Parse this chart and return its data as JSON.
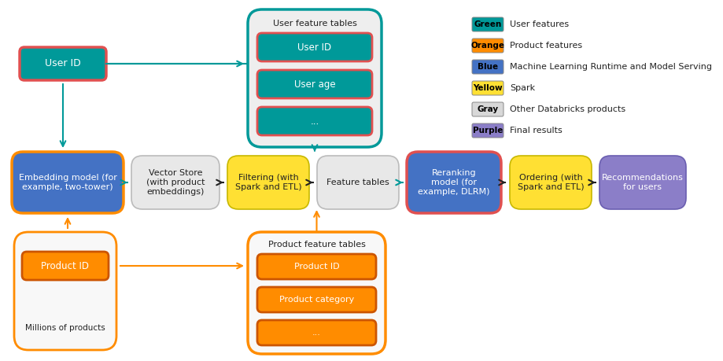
{
  "bg_color": "#ffffff",
  "teal_color": "#009999",
  "orange_color": "#FF8C00",
  "blue_color": "#4472C4",
  "yellow_color": "#FFE033",
  "gray_color": "#E8E8E8",
  "purple_color": "#8B7EC8",
  "red_border": "#E05050",
  "legend": [
    {
      "color": "#009999",
      "label": "Green",
      "desc": "User features"
    },
    {
      "color": "#FF8C00",
      "label": "Orange",
      "desc": "Product features"
    },
    {
      "color": "#4472C4",
      "label": "Blue",
      "desc": "Machine Learning Runtime and Model Serving"
    },
    {
      "color": "#FFE033",
      "label": "Yellow",
      "desc": "Spark"
    },
    {
      "color": "#D8D8D8",
      "label": "Gray",
      "desc": "Other Databricks products"
    },
    {
      "color": "#8B7EC8",
      "label": "Purple",
      "desc": "Final results"
    }
  ]
}
